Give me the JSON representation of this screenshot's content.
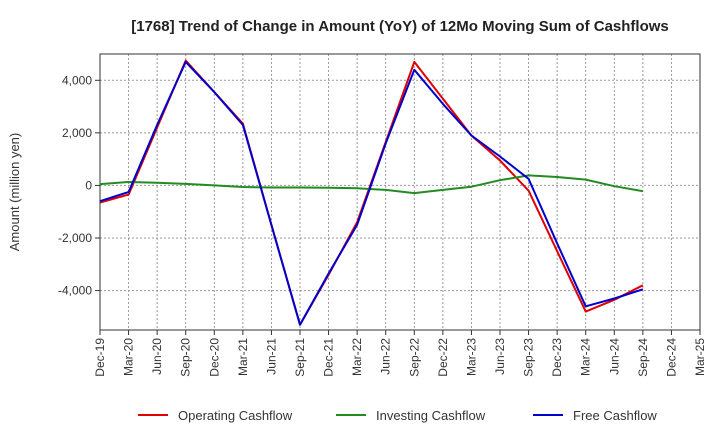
{
  "chart_data": {
    "type": "line",
    "title": "[1768]  Trend of Change in Amount (YoY) of 12Mo Moving Sum of Cashflows",
    "xlabel": "",
    "ylabel": "Amount (million yen)",
    "ylim": [
      -5500,
      5000
    ],
    "yticks": [
      4000,
      2000,
      0,
      -2000,
      -4000
    ],
    "ytick_labels": [
      "4,000",
      "2,000",
      "0",
      "-2,000",
      "-4,000"
    ],
    "categories": [
      "Dec-19",
      "Mar-20",
      "Jun-20",
      "Sep-20",
      "Dec-20",
      "Mar-21",
      "Jun-21",
      "Sep-21",
      "Dec-21",
      "Mar-22",
      "Jun-22",
      "Sep-22",
      "Dec-22",
      "Mar-23",
      "Jun-23",
      "Sep-23",
      "Dec-23",
      "Mar-24",
      "Jun-24",
      "Sep-24",
      "Dec-24",
      "Mar-25"
    ],
    "grid": true,
    "legend_position": "bottom",
    "series": [
      {
        "name": "Operating Cashflow",
        "color": "#e00000",
        "values": [
          -650,
          -350,
          2200,
          4750,
          3550,
          2350,
          -1500,
          -5300,
          -3400,
          -1400,
          1650,
          4700,
          3300,
          1900,
          950,
          -200,
          -2500,
          -4800,
          -4350,
          -3800,
          null,
          null
        ]
      },
      {
        "name": "Investing Cashflow",
        "color": "#228b22",
        "values": [
          50,
          130,
          100,
          60,
          0,
          -60,
          -80,
          -80,
          -90,
          -110,
          -170,
          -290,
          -170,
          -50,
          200,
          380,
          320,
          220,
          -30,
          -220,
          null,
          null
        ]
      },
      {
        "name": "Free Cashflow",
        "color": "#0000cc",
        "values": [
          -600,
          -250,
          2300,
          4700,
          3550,
          2300,
          -1500,
          -5300,
          -3350,
          -1500,
          1600,
          4400,
          3100,
          1900,
          1100,
          250,
          -2200,
          -4600,
          -4300,
          -3950,
          null,
          null
        ]
      }
    ]
  }
}
